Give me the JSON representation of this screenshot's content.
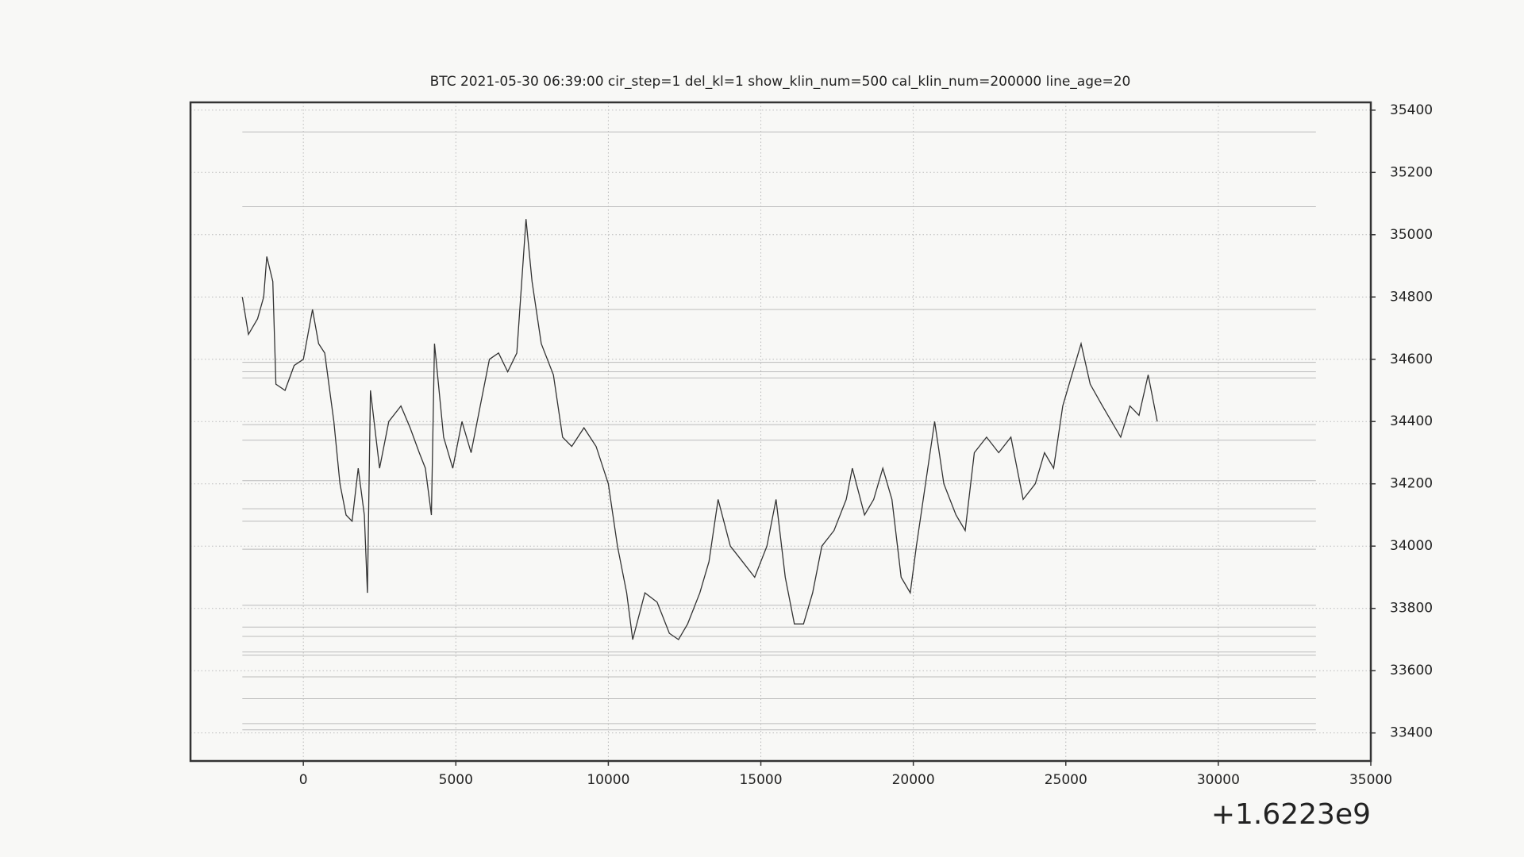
{
  "chart_data": {
    "type": "line",
    "title": "BTC    2021-05-30 06:39:00 cir_step=1 del_kl=1 show_klin_num=500 cal_klin_num=200000 line_age=20",
    "x_offset_text": "+1.6223e9",
    "x": [
      -2000,
      -1800,
      -1500,
      -1300,
      -1200,
      -1000,
      -900,
      -600,
      -300,
      0,
      300,
      500,
      700,
      1000,
      1200,
      1400,
      1600,
      1800,
      2000,
      2100,
      2200,
      2500,
      2800,
      3200,
      3500,
      3800,
      4000,
      4200,
      4300,
      4600,
      4900,
      5200,
      5500,
      5800,
      6100,
      6400,
      6700,
      7000,
      7300,
      7500,
      7800,
      8200,
      8500,
      8800,
      9200,
      9600,
      10000,
      10300,
      10600,
      10800,
      11200,
      11600,
      12000,
      12300,
      12600,
      13000,
      13300,
      13600,
      14000,
      14400,
      14800,
      15200,
      15500,
      15800,
      16100,
      16400,
      16700,
      17000,
      17400,
      17800,
      18000,
      18400,
      18700,
      19000,
      19300,
      19600,
      19900,
      20100,
      20400,
      20700,
      21000,
      21400,
      21700,
      22000,
      22400,
      22800,
      23200,
      23600,
      24000,
      24300,
      24600,
      24900,
      25200,
      25500,
      25800,
      26200,
      26500,
      26800,
      27100,
      27400,
      27700,
      28000
    ],
    "values": [
      34800,
      34680,
      34730,
      34800,
      34930,
      34850,
      34520,
      34500,
      34580,
      34600,
      34760,
      34650,
      34620,
      34400,
      34200,
      34100,
      34080,
      34250,
      34100,
      33850,
      34500,
      34250,
      34400,
      34450,
      34380,
      34300,
      34250,
      34100,
      34650,
      34350,
      34250,
      34400,
      34300,
      34450,
      34600,
      34620,
      34560,
      34620,
      35050,
      34850,
      34650,
      34550,
      34350,
      34320,
      34380,
      34320,
      34200,
      34000,
      33850,
      33700,
      33850,
      33820,
      33720,
      33700,
      33750,
      33850,
      33950,
      34150,
      34000,
      33950,
      33900,
      34000,
      34150,
      33900,
      33750,
      33750,
      33850,
      34000,
      34050,
      34150,
      34250,
      34100,
      34150,
      34250,
      34150,
      33900,
      33850,
      34000,
      34200,
      34400,
      34200,
      34100,
      34050,
      34300,
      34350,
      34300,
      34350,
      34150,
      34200,
      34300,
      34250,
      34450,
      34550,
      34650,
      34520,
      34450,
      34400,
      34350,
      34450,
      34420,
      34550,
      34400
    ],
    "color": "#333333",
    "hlines": [
      35330,
      35090,
      34760,
      34590,
      34560,
      34540,
      34390,
      34340,
      34210,
      34120,
      34080,
      33990,
      33810,
      33740,
      33710,
      33660,
      33650,
      33580,
      33510,
      33430,
      33410
    ],
    "hline_color": "#bbbbbb",
    "xlim": [
      -3700,
      35000
    ],
    "xticks": [
      0,
      5000,
      10000,
      15000,
      20000,
      25000,
      30000,
      35000
    ],
    "ylim": [
      33310,
      35425
    ],
    "yticks": [
      33400,
      33600,
      33800,
      34000,
      34200,
      34400,
      34600,
      34800,
      35000,
      35200,
      35400
    ],
    "grid": true
  }
}
